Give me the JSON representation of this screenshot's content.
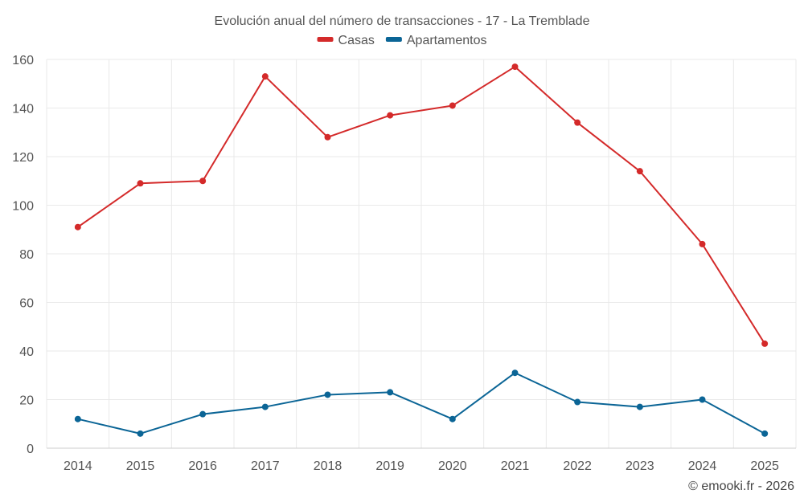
{
  "chart_data": {
    "type": "line",
    "title": "Evolución anual del número de transacciones - 17 - La Tremblade",
    "categories": [
      "2014",
      "2015",
      "2016",
      "2017",
      "2018",
      "2019",
      "2020",
      "2021",
      "2022",
      "2023",
      "2024",
      "2025"
    ],
    "series": [
      {
        "name": "Casas",
        "color": "#d42a2a",
        "values": [
          91,
          109,
          110,
          153,
          128,
          137,
          141,
          157,
          134,
          114,
          84,
          43
        ]
      },
      {
        "name": "Apartamentos",
        "color": "#0b6596",
        "values": [
          12,
          6,
          14,
          17,
          22,
          23,
          12,
          31,
          19,
          17,
          20,
          6
        ]
      }
    ],
    "ylim": [
      0,
      160
    ],
    "yticks": [
      0,
      20,
      40,
      60,
      80,
      100,
      120,
      140,
      160
    ],
    "xlabel": "",
    "ylabel": "",
    "grid": true,
    "legend": "top-center",
    "credit": "© emooki.fr - 2026"
  }
}
